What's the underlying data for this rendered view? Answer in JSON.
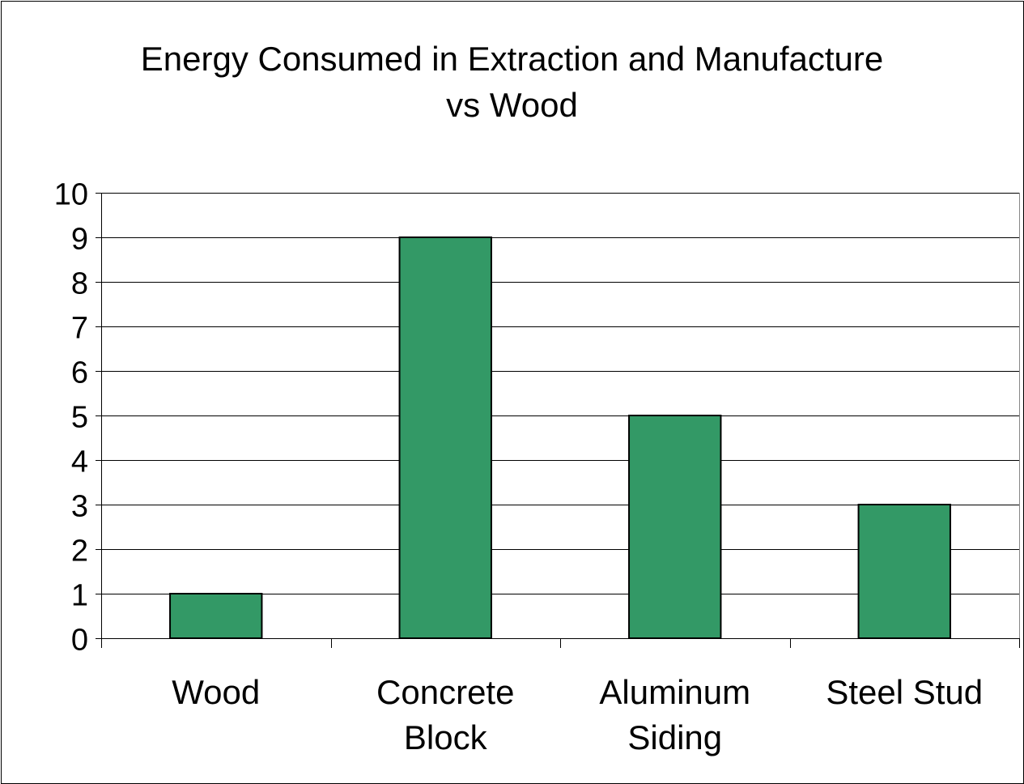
{
  "chart_data": {
    "type": "bar",
    "title_lines": [
      "Energy Consumed in Extraction and Manufacture",
      "vs Wood"
    ],
    "categories": [
      [
        "Wood"
      ],
      [
        "Concrete",
        "Block"
      ],
      [
        "Aluminum",
        "Siding"
      ],
      [
        "Steel Stud"
      ]
    ],
    "values": [
      1,
      9,
      5,
      3
    ],
    "ylim": [
      0,
      10
    ],
    "yticks": [
      "0",
      "1",
      "2",
      "3",
      "4",
      "5",
      "6",
      "7",
      "8",
      "9",
      "10"
    ],
    "xlabel": "",
    "ylabel": "",
    "grid": true,
    "legend": "none",
    "bar_color": "#339966",
    "bar_edge_color": "#000000",
    "grid_color": "#000000"
  }
}
